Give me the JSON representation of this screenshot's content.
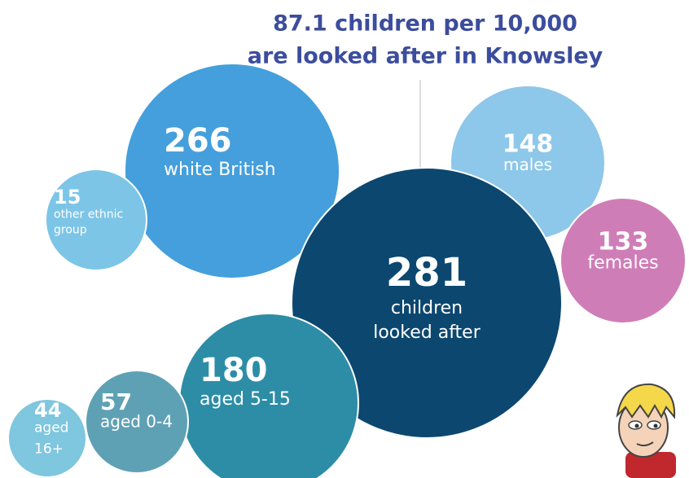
{
  "chart_data": {
    "type": "bubble",
    "title_lines": [
      "87.1 children per 10,000",
      "are looked after in Knowsley"
    ],
    "bubbles": [
      {
        "value": 266,
        "label_lines": [
          "white British"
        ],
        "color": "#449fdc"
      },
      {
        "value": 15,
        "label_lines": [
          "other ethnic",
          "group"
        ],
        "color": "#7cc5e7"
      },
      {
        "value": 148,
        "label_lines": [
          "males"
        ],
        "color": "#8dc7ea"
      },
      {
        "value": 133,
        "label_lines": [
          "females"
        ],
        "color": "#cf7db7"
      },
      {
        "value": 281,
        "label_lines": [
          "children",
          "looked after"
        ],
        "color": "#0c4770"
      },
      {
        "value": 44,
        "label_lines": [
          "aged",
          "16+"
        ],
        "color": "#7fc6df"
      },
      {
        "value": 180,
        "label_lines": [
          "aged 5-15"
        ],
        "color": "#2d8da7"
      },
      {
        "value": 57,
        "label_lines": [
          "aged 0-4"
        ],
        "color": "#5fa1b4"
      }
    ]
  }
}
